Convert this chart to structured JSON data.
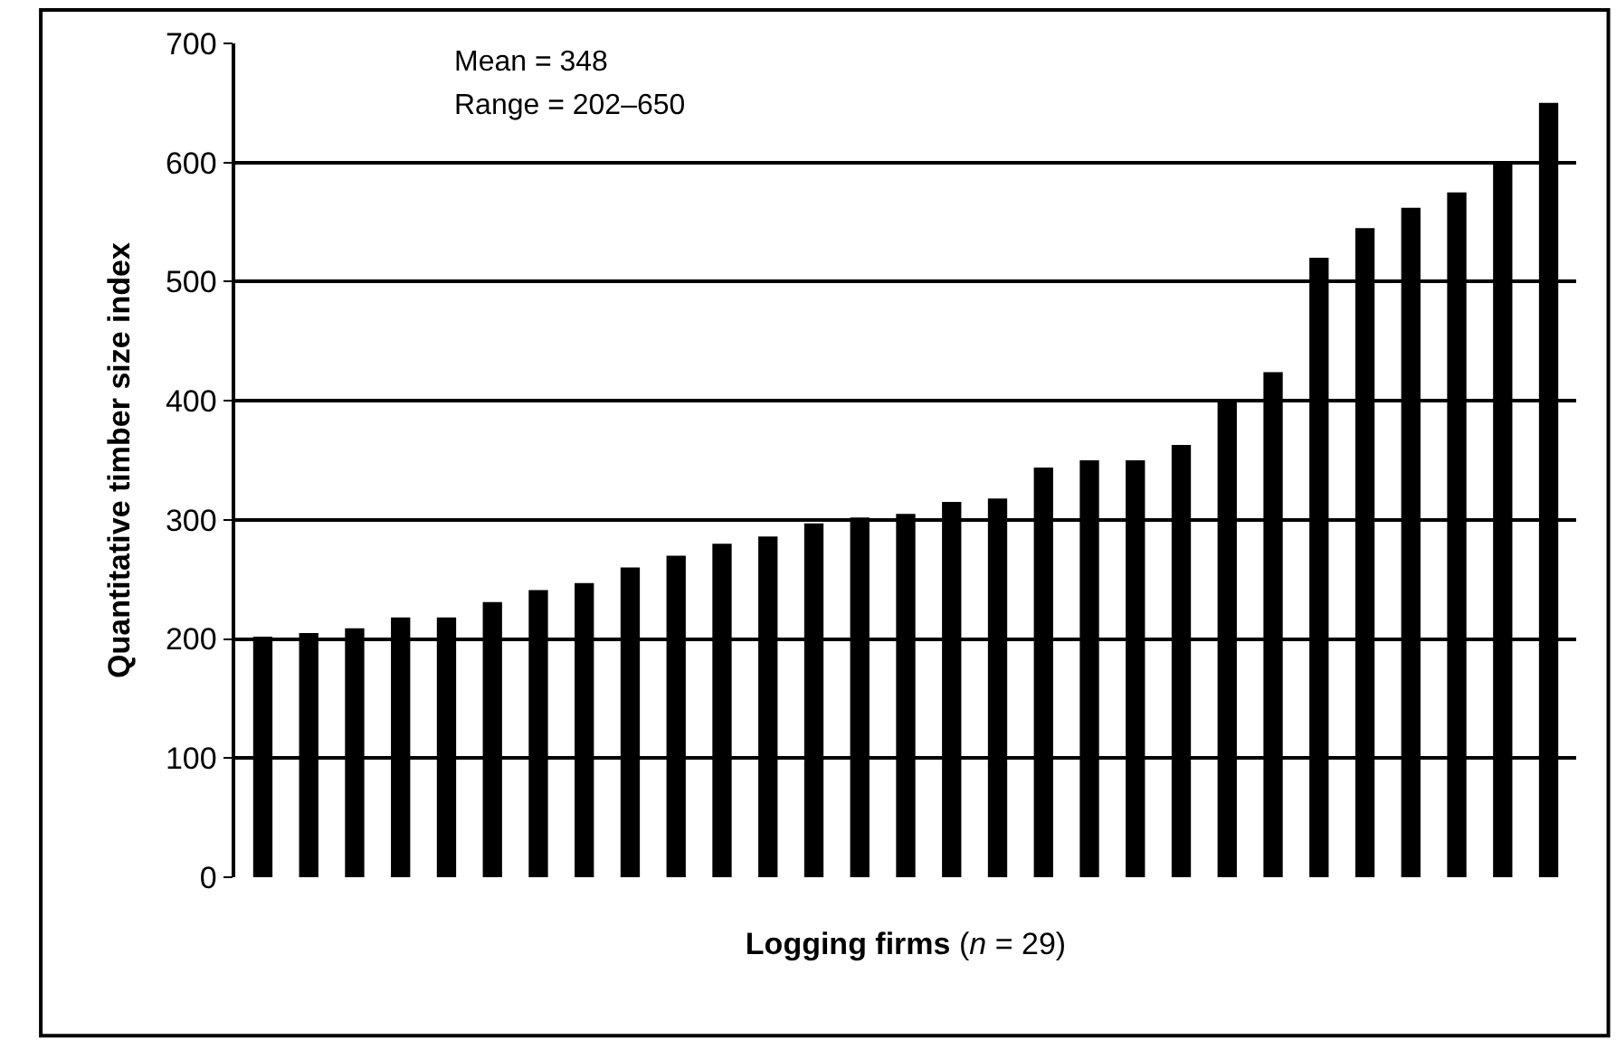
{
  "chart_data": {
    "type": "bar",
    "categories": [
      null,
      null,
      null,
      null,
      null,
      null,
      null,
      null,
      null,
      null,
      null,
      null,
      null,
      null,
      null,
      null,
      null,
      null,
      null,
      null,
      null,
      null,
      null,
      null,
      null,
      null,
      null,
      null,
      null
    ],
    "values": [
      202,
      205,
      209,
      218,
      218,
      231,
      241,
      247,
      260,
      270,
      280,
      286,
      297,
      302,
      305,
      315,
      318,
      344,
      350,
      350,
      363,
      400,
      424,
      520,
      545,
      562,
      575,
      600,
      650
    ],
    "color": "#000000",
    "xlabel": "**Logging firms** (*n* = 29)",
    "ylabel": "Quantitative timber size index",
    "ylim": [
      0,
      700
    ],
    "yticks": [
      0,
      100,
      200,
      300,
      400,
      500,
      600,
      700
    ],
    "grid": "y",
    "annotations": [
      "Mean = 348",
      "Range = 202–650"
    ]
  }
}
